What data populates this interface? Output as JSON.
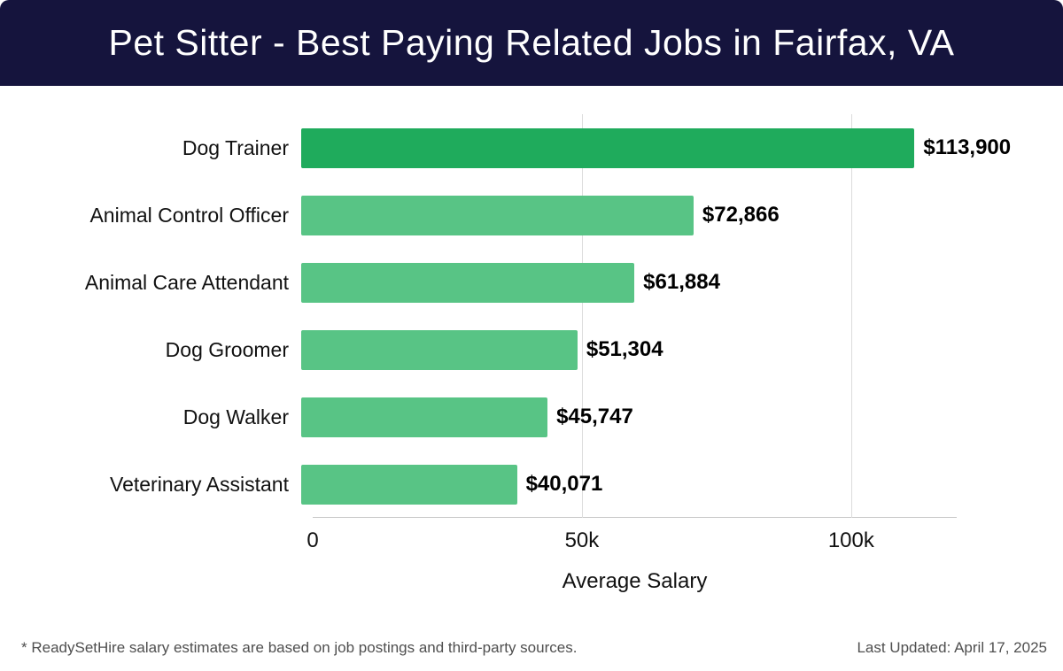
{
  "header": {
    "title": "Pet Sitter - Best Paying Related Jobs in Fairfax, VA",
    "bg_color": "#15143d"
  },
  "chart_data": {
    "type": "bar",
    "orientation": "horizontal",
    "title": "Pet Sitter - Best Paying Related Jobs in Fairfax, VA",
    "xlabel": "Average Salary",
    "ylabel": "",
    "categories": [
      "Dog Trainer",
      "Animal Control Officer",
      "Animal Care Attendant",
      "Dog Groomer",
      "Dog Walker",
      "Veterinary Assistant"
    ],
    "values": [
      113900,
      72866,
      61884,
      51304,
      45747,
      40071
    ],
    "value_labels": [
      "$113,900",
      "$72,866",
      "$61,884",
      "$51,304",
      "$45,747",
      "$40,071"
    ],
    "highlight_color": "#1fab5c",
    "bar_color": "#58c485",
    "xlim": [
      0,
      119600
    ],
    "grid": true,
    "ticks": [
      {
        "value": 0,
        "label": "0"
      },
      {
        "value": 50000,
        "label": "50k"
      },
      {
        "value": 100000,
        "label": "100k"
      }
    ]
  },
  "footer": {
    "note": "* ReadySetHire salary estimates are based on job postings and third-party sources.",
    "updated": "Last Updated: April 17, 2025"
  }
}
